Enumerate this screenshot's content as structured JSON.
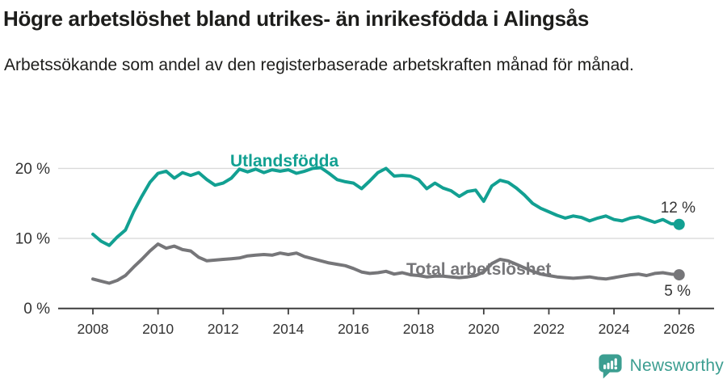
{
  "header": {
    "title": "Högre arbetslöshet bland utrikes- än inrikesfödda i Alingsås",
    "subtitle": "Arbetssökande som andel av den registerbaserade arbetskraften månad för månad."
  },
  "chart_data": {
    "type": "line",
    "title": "Högre arbetslöshet bland utrikes- än inrikesfödda i Alingsås",
    "subtitle": "Arbetssökande som andel av den registerbaserade arbetskraften månad för månad.",
    "unit": "%",
    "xlabel": "",
    "ylabel": "",
    "ylim": [
      0,
      23
    ],
    "xlim": [
      2007.4,
      2027.1
    ],
    "grid": "horizontal",
    "legend_position": "inline-labels",
    "y_ticks": [
      {
        "value": 0,
        "label": "0 %"
      },
      {
        "value": 10,
        "label": "10 %"
      },
      {
        "value": 20,
        "label": "20 %"
      }
    ],
    "x_tick_labels": [
      "2008",
      "2010",
      "2012",
      "2014",
      "2016",
      "2018",
      "2020",
      "2022",
      "2024",
      "2026"
    ],
    "x_tick_values": [
      2008,
      2010,
      2012,
      2014,
      2016,
      2018,
      2020,
      2022,
      2024,
      2026
    ],
    "x": [
      2008,
      2008.25,
      2008.5,
      2008.75,
      2009,
      2009.25,
      2009.5,
      2009.75,
      2010,
      2010.25,
      2010.5,
      2010.75,
      2011,
      2011.25,
      2011.5,
      2011.75,
      2012,
      2012.25,
      2012.5,
      2012.75,
      2013,
      2013.25,
      2013.5,
      2013.75,
      2014,
      2014.25,
      2014.5,
      2014.75,
      2015,
      2015.25,
      2015.5,
      2015.75,
      2016,
      2016.25,
      2016.5,
      2016.75,
      2017,
      2017.25,
      2017.5,
      2017.75,
      2018,
      2018.25,
      2018.5,
      2018.75,
      2019,
      2019.25,
      2019.5,
      2019.75,
      2020,
      2020.25,
      2020.5,
      2020.75,
      2021,
      2021.25,
      2021.5,
      2021.75,
      2022,
      2022.25,
      2022.5,
      2022.75,
      2023,
      2023.25,
      2023.5,
      2023.75,
      2024,
      2024.25,
      2024.5,
      2024.75,
      2025,
      2025.25,
      2025.5,
      2025.75,
      2026
    ],
    "series": [
      {
        "name": "Utlandsfödda",
        "color": "#12a092",
        "end_label": "12 %",
        "values": [
          10.6,
          9.6,
          9.0,
          10.2,
          11.2,
          13.8,
          16.0,
          18.0,
          19.3,
          19.6,
          18.6,
          19.4,
          19.0,
          19.4,
          18.4,
          17.6,
          17.9,
          18.6,
          19.9,
          19.5,
          19.9,
          19.4,
          19.8,
          19.6,
          19.8,
          19.3,
          19.6,
          20.0,
          20.1,
          19.3,
          18.4,
          18.1,
          17.9,
          17.1,
          18.2,
          19.4,
          20.0,
          18.9,
          19.0,
          18.9,
          18.4,
          17.1,
          17.9,
          17.2,
          16.8,
          16.0,
          16.7,
          16.9,
          15.3,
          17.5,
          18.3,
          18.0,
          17.2,
          16.2,
          15.0,
          14.3,
          13.8,
          13.3,
          12.9,
          13.2,
          13.0,
          12.5,
          12.9,
          13.2,
          12.7,
          12.5,
          12.9,
          13.1,
          12.7,
          12.3,
          12.7,
          12.1,
          12.0
        ]
      },
      {
        "name": "Total arbetslöshet",
        "color": "#767679",
        "end_label": "5 %",
        "values": [
          4.2,
          3.9,
          3.6,
          4.0,
          4.7,
          5.9,
          7.0,
          8.2,
          9.2,
          8.6,
          8.9,
          8.4,
          8.2,
          7.3,
          6.8,
          6.9,
          7.0,
          7.1,
          7.2,
          7.5,
          7.6,
          7.7,
          7.6,
          7.9,
          7.7,
          7.9,
          7.4,
          7.1,
          6.8,
          6.5,
          6.3,
          6.1,
          5.7,
          5.2,
          5.0,
          5.1,
          5.3,
          4.9,
          5.1,
          4.8,
          4.7,
          4.5,
          4.6,
          4.6,
          4.5,
          4.4,
          4.5,
          4.7,
          5.2,
          6.4,
          7.0,
          6.8,
          6.3,
          5.8,
          5.3,
          4.9,
          4.7,
          4.5,
          4.4,
          4.3,
          4.4,
          4.5,
          4.3,
          4.2,
          4.4,
          4.6,
          4.8,
          4.9,
          4.7,
          5.0,
          5.1,
          4.9,
          4.8
        ]
      }
    ]
  },
  "footer": {
    "brand": "Newsworthy",
    "brand_color": "#3c9e91",
    "logo_icon": "speech-bubble-bar-chart-icon"
  }
}
